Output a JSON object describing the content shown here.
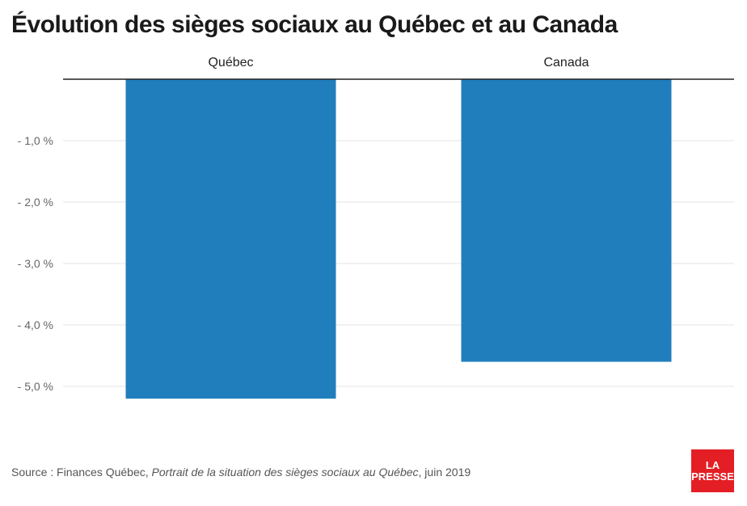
{
  "title": "Évolution des sièges sociaux au Québec et au Canada",
  "chart_data": {
    "type": "bar",
    "categories": [
      "Québec",
      "Canada"
    ],
    "values": [
      -5.2,
      -4.6
    ],
    "ylim": [
      -5.4,
      0
    ],
    "yticks": [
      -1.0,
      -2.0,
      -3.0,
      -4.0,
      -5.0
    ],
    "ytick_labels": [
      "- 1,0 %",
      "- 2,0 %",
      "- 3,0 %",
      "- 4,0 %",
      "- 5,0 %"
    ],
    "category_labels_position": "top",
    "grid": true,
    "bar_color": "#217ebc"
  },
  "source": {
    "prefix": "Source : Finances Québec, ",
    "document": "Portrait de la situation des sièges sociaux au Québec",
    "suffix": ", juin 2019"
  },
  "logo": {
    "line1": "LA",
    "line2": "PRESSE",
    "color": "#e31e24"
  }
}
